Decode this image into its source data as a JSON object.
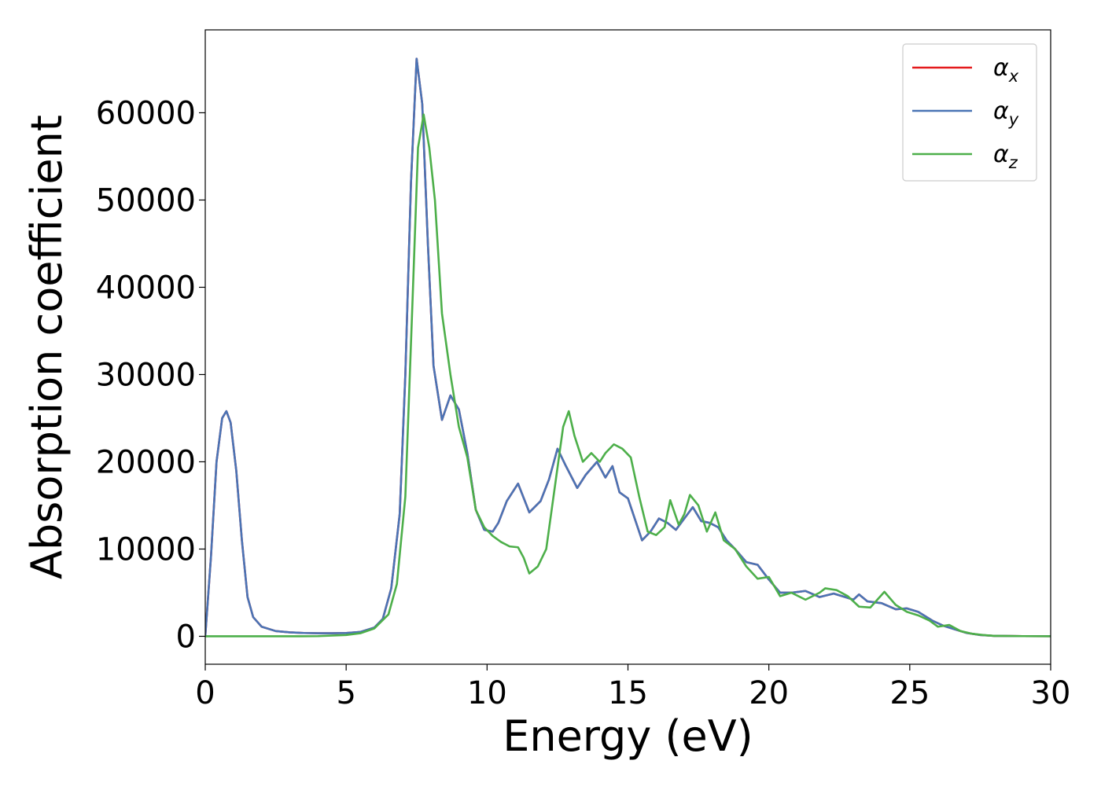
{
  "chart_data": {
    "type": "line",
    "title": "",
    "xlabel": "Energy (eV)",
    "ylabel": "Absorption coefficient",
    "xlim": [
      0,
      30
    ],
    "ylim": [
      -3200,
      69500
    ],
    "xticks": [
      0,
      5,
      10,
      15,
      20,
      25,
      30
    ],
    "yticks": [
      0,
      10000,
      20000,
      30000,
      40000,
      50000,
      60000
    ],
    "grid": false,
    "legend_position": "top-right",
    "series": [
      {
        "name": "α_x",
        "legend_symbol": "α",
        "legend_subscript": "x",
        "color": "#e41a1c",
        "x": [
          0,
          0.2,
          0.4,
          0.6,
          0.75,
          0.9,
          1.1,
          1.3,
          1.5,
          1.7,
          2.0,
          2.5,
          3.0,
          3.5,
          4.0,
          4.5,
          5.0,
          5.5,
          6.0,
          6.3,
          6.6,
          6.9,
          7.1,
          7.3,
          7.5,
          7.7,
          7.9,
          8.1,
          8.4,
          8.7,
          9.0,
          9.3,
          9.6,
          9.9,
          10.2,
          10.4,
          10.7,
          11.1,
          11.5,
          11.9,
          12.2,
          12.5,
          12.8,
          13.2,
          13.5,
          13.9,
          14.2,
          14.45,
          14.7,
          15.0,
          15.5,
          15.8,
          16.1,
          16.4,
          16.7,
          17.0,
          17.3,
          17.6,
          17.9,
          18.2,
          18.5,
          18.8,
          19.2,
          19.6,
          20.0,
          20.4,
          20.8,
          21.3,
          21.8,
          22.3,
          22.7,
          23.0,
          23.2,
          23.5,
          24.0,
          24.5,
          24.9,
          25.3,
          25.8,
          26.2,
          26.6,
          27.0,
          27.5,
          28.0,
          29.0,
          30.0
        ],
        "y": [
          0,
          9000,
          20000,
          25000,
          25800,
          24500,
          19000,
          11000,
          4500,
          2200,
          1100,
          600,
          450,
          380,
          350,
          350,
          380,
          500,
          1000,
          2000,
          5500,
          14000,
          30000,
          52000,
          66200,
          61000,
          45000,
          31000,
          24800,
          27600,
          26000,
          21000,
          14500,
          12200,
          12000,
          13000,
          15500,
          17500,
          14200,
          15500,
          18000,
          21500,
          19500,
          17000,
          18500,
          20000,
          18200,
          19500,
          16500,
          15800,
          11000,
          12000,
          13500,
          13000,
          12200,
          13500,
          14800,
          13200,
          13000,
          12500,
          11000,
          10000,
          8500,
          8200,
          6500,
          5000,
          5000,
          5200,
          4500,
          4900,
          4500,
          4200,
          4800,
          4000,
          3800,
          3100,
          3200,
          2800,
          1800,
          1200,
          800,
          400,
          150,
          50,
          20,
          10
        ]
      },
      {
        "name": "α_y",
        "legend_symbol": "α",
        "legend_subscript": "y",
        "color": "#4a74b5",
        "x": [
          0,
          0.2,
          0.4,
          0.6,
          0.75,
          0.9,
          1.1,
          1.3,
          1.5,
          1.7,
          2.0,
          2.5,
          3.0,
          3.5,
          4.0,
          4.5,
          5.0,
          5.5,
          6.0,
          6.3,
          6.6,
          6.9,
          7.1,
          7.3,
          7.5,
          7.7,
          7.9,
          8.1,
          8.4,
          8.7,
          9.0,
          9.3,
          9.6,
          9.9,
          10.2,
          10.4,
          10.7,
          11.1,
          11.5,
          11.9,
          12.2,
          12.5,
          12.8,
          13.2,
          13.5,
          13.9,
          14.2,
          14.45,
          14.7,
          15.0,
          15.5,
          15.8,
          16.1,
          16.4,
          16.7,
          17.0,
          17.3,
          17.6,
          17.9,
          18.2,
          18.5,
          18.8,
          19.2,
          19.6,
          20.0,
          20.4,
          20.8,
          21.3,
          21.8,
          22.3,
          22.7,
          23.0,
          23.2,
          23.5,
          24.0,
          24.5,
          24.9,
          25.3,
          25.8,
          26.2,
          26.6,
          27.0,
          27.5,
          28.0,
          29.0,
          30.0
        ],
        "y": [
          0,
          9000,
          20000,
          25000,
          25800,
          24500,
          19000,
          11000,
          4500,
          2200,
          1100,
          600,
          450,
          380,
          350,
          350,
          380,
          500,
          1000,
          2000,
          5500,
          14000,
          30000,
          52000,
          66200,
          61000,
          45000,
          31000,
          24800,
          27600,
          26000,
          21000,
          14500,
          12200,
          12000,
          13000,
          15500,
          17500,
          14200,
          15500,
          18000,
          21500,
          19500,
          17000,
          18500,
          20000,
          18200,
          19500,
          16500,
          15800,
          11000,
          12000,
          13500,
          13000,
          12200,
          13500,
          14800,
          13200,
          13000,
          12500,
          11000,
          10000,
          8500,
          8200,
          6500,
          5000,
          5000,
          5200,
          4500,
          4900,
          4500,
          4200,
          4800,
          4000,
          3800,
          3100,
          3200,
          2800,
          1800,
          1200,
          800,
          400,
          150,
          50,
          20,
          10
        ]
      },
      {
        "name": "α_z",
        "legend_symbol": "α",
        "legend_subscript": "z",
        "color": "#4daf4a",
        "x": [
          0,
          1.0,
          2.0,
          3.0,
          4.0,
          5.0,
          5.5,
          6.0,
          6.5,
          6.8,
          7.1,
          7.35,
          7.55,
          7.75,
          7.95,
          8.15,
          8.4,
          8.7,
          9.0,
          9.3,
          9.6,
          9.9,
          10.2,
          10.5,
          10.8,
          11.1,
          11.3,
          11.5,
          11.8,
          12.1,
          12.4,
          12.7,
          12.9,
          13.1,
          13.4,
          13.7,
          14.0,
          14.2,
          14.5,
          14.8,
          15.1,
          15.4,
          15.7,
          16.0,
          16.3,
          16.5,
          16.8,
          17.0,
          17.2,
          17.5,
          17.8,
          18.1,
          18.4,
          18.8,
          19.2,
          19.6,
          20.0,
          20.4,
          20.8,
          21.3,
          21.8,
          22.0,
          22.4,
          22.8,
          23.2,
          23.6,
          24.1,
          24.5,
          24.9,
          25.3,
          25.7,
          26.0,
          26.4,
          26.8,
          27.2,
          27.6,
          28.0,
          29.0,
          30.0
        ],
        "y": [
          0,
          0,
          0,
          0,
          20,
          150,
          350,
          900,
          2500,
          6000,
          16000,
          38000,
          56000,
          59800,
          56000,
          50000,
          37000,
          30000,
          24000,
          20500,
          14500,
          12500,
          11500,
          10800,
          10300,
          10200,
          9000,
          7200,
          8000,
          10000,
          17000,
          24000,
          25800,
          23000,
          20000,
          21000,
          20000,
          21000,
          22000,
          21500,
          20500,
          16000,
          12000,
          11600,
          12500,
          15600,
          12800,
          14000,
          16200,
          15000,
          12000,
          14200,
          11000,
          10000,
          8000,
          6600,
          6800,
          4600,
          5000,
          4200,
          5000,
          5500,
          5300,
          4600,
          3400,
          3300,
          5100,
          3600,
          2800,
          2400,
          1800,
          1100,
          1300,
          600,
          300,
          150,
          50,
          20,
          10
        ]
      }
    ]
  }
}
